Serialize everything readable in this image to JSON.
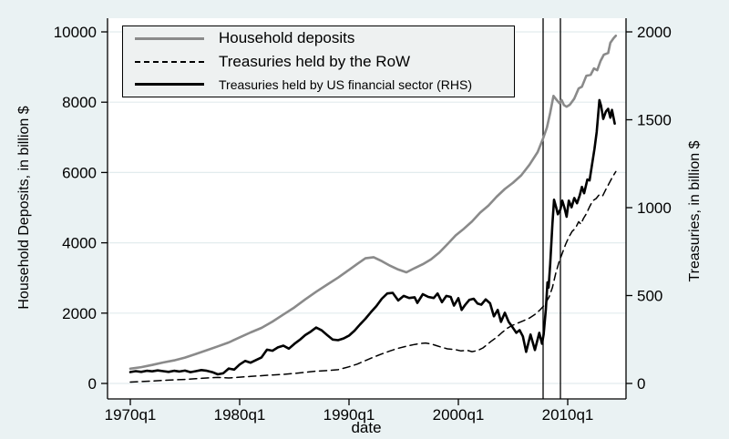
{
  "figure": {
    "background_color": "#eaf2f3",
    "plot_background": "#ffffff",
    "grid_color": "#e2ecee",
    "axis_color": "#000000"
  },
  "chart_data": {
    "type": "line",
    "x_axis": {
      "title": "date",
      "range": [
        1969.8,
        2015.3
      ],
      "ticks": [
        {
          "value": 1970,
          "label": "1970q1"
        },
        {
          "value": 1980,
          "label": "1980q1"
        },
        {
          "value": 1990,
          "label": "1990q1"
        },
        {
          "value": 2000,
          "label": "2000q1"
        },
        {
          "value": 2010,
          "label": "2010q1"
        }
      ]
    },
    "left_axis": {
      "title": "Household Deposits, in billion $",
      "range": [
        0,
        10000
      ],
      "ticks": [
        {
          "value": 0,
          "label": "0"
        },
        {
          "value": 2000,
          "label": "2000"
        },
        {
          "value": 4000,
          "label": "4000"
        },
        {
          "value": 6000,
          "label": "6000"
        },
        {
          "value": 8000,
          "label": "8000"
        },
        {
          "value": 10000,
          "label": "10000"
        }
      ]
    },
    "right_axis": {
      "title": "Treasuries, in billion $",
      "range": [
        0,
        2000
      ],
      "ticks": [
        {
          "value": 0,
          "label": "0"
        },
        {
          "value": 500,
          "label": "500"
        },
        {
          "value": 1000,
          "label": "1000"
        },
        {
          "value": 1500,
          "label": "1500"
        },
        {
          "value": 2000,
          "label": "2000"
        }
      ]
    },
    "vertical_lines": [
      2007.75,
      2009.33
    ],
    "legend_position": "top-left",
    "grid": "horizontal",
    "series": [
      {
        "name": "Household deposits",
        "axis": "left",
        "color": "#8a8a8a",
        "style": "solid",
        "width": 2.6,
        "points": [
          [
            1970,
            420
          ],
          [
            1971,
            465
          ],
          [
            1972,
            525
          ],
          [
            1973,
            595
          ],
          [
            1974,
            655
          ],
          [
            1975,
            735
          ],
          [
            1976,
            840
          ],
          [
            1977,
            945
          ],
          [
            1978,
            1055
          ],
          [
            1979,
            1165
          ],
          [
            1980,
            1310
          ],
          [
            1981,
            1450
          ],
          [
            1982,
            1580
          ],
          [
            1983,
            1760
          ],
          [
            1984,
            1960
          ],
          [
            1985,
            2160
          ],
          [
            1986,
            2390
          ],
          [
            1987,
            2610
          ],
          [
            1988,
            2810
          ],
          [
            1989,
            3010
          ],
          [
            1990,
            3230
          ],
          [
            1990.75,
            3400
          ],
          [
            1991.5,
            3560
          ],
          [
            1992.25,
            3590
          ],
          [
            1993,
            3480
          ],
          [
            1993.75,
            3350
          ],
          [
            1994.5,
            3240
          ],
          [
            1995.25,
            3160
          ],
          [
            1996,
            3280
          ],
          [
            1996.75,
            3390
          ],
          [
            1997.5,
            3530
          ],
          [
            1998.25,
            3720
          ],
          [
            1999,
            3960
          ],
          [
            1999.75,
            4210
          ],
          [
            2000.5,
            4400
          ],
          [
            2001.25,
            4610
          ],
          [
            2002,
            4860
          ],
          [
            2002.75,
            5060
          ],
          [
            2003.5,
            5310
          ],
          [
            2004.25,
            5530
          ],
          [
            2005,
            5710
          ],
          [
            2005.75,
            5920
          ],
          [
            2006.5,
            6220
          ],
          [
            2007.25,
            6580
          ],
          [
            2007.75,
            6970
          ],
          [
            2008.1,
            7280
          ],
          [
            2008.4,
            7700
          ],
          [
            2008.7,
            8180
          ],
          [
            2009,
            8060
          ],
          [
            2009.25,
            7970
          ],
          [
            2009.45,
            8060
          ],
          [
            2009.65,
            7920
          ],
          [
            2009.9,
            7870
          ],
          [
            2010.2,
            7930
          ],
          [
            2010.6,
            8100
          ],
          [
            2011,
            8390
          ],
          [
            2011.3,
            8440
          ],
          [
            2011.7,
            8750
          ],
          [
            2012.1,
            8780
          ],
          [
            2012.4,
            8960
          ],
          [
            2012.7,
            8910
          ],
          [
            2013,
            9170
          ],
          [
            2013.3,
            9350
          ],
          [
            2013.7,
            9400
          ],
          [
            2013.9,
            9690
          ],
          [
            2014.2,
            9820
          ],
          [
            2014.4,
            9890
          ]
        ]
      },
      {
        "name": "Treasuries held by the RoW",
        "axis": "right",
        "color": "#000000",
        "style": "dashed",
        "width": 1.5,
        "points": [
          [
            1970,
            8
          ],
          [
            1971,
            11
          ],
          [
            1972,
            14
          ],
          [
            1973,
            17
          ],
          [
            1974,
            20
          ],
          [
            1975,
            23
          ],
          [
            1976,
            27
          ],
          [
            1977,
            31
          ],
          [
            1978,
            34
          ],
          [
            1979,
            31
          ],
          [
            1980,
            36
          ],
          [
            1981,
            40
          ],
          [
            1982,
            44
          ],
          [
            1983,
            48
          ],
          [
            1984,
            52
          ],
          [
            1985,
            57
          ],
          [
            1986,
            63
          ],
          [
            1987,
            70
          ],
          [
            1988,
            73
          ],
          [
            1989,
            78
          ],
          [
            1990,
            95
          ],
          [
            1990.75,
            110
          ],
          [
            1991.5,
            130
          ],
          [
            1992.25,
            150
          ],
          [
            1993,
            168
          ],
          [
            1993.75,
            185
          ],
          [
            1994.5,
            200
          ],
          [
            1995.25,
            212
          ],
          [
            1996,
            222
          ],
          [
            1996.5,
            227
          ],
          [
            1997,
            230
          ],
          [
            1997.5,
            225
          ],
          [
            1998,
            215
          ],
          [
            1998.5,
            205
          ],
          [
            1999,
            197
          ],
          [
            1999.75,
            192
          ],
          [
            2000.25,
            185
          ],
          [
            2000.75,
            189
          ],
          [
            2001.25,
            181
          ],
          [
            2001.75,
            187
          ],
          [
            2002.25,
            202
          ],
          [
            2003,
            240
          ],
          [
            2003.5,
            262
          ],
          [
            2004,
            290
          ],
          [
            2004.5,
            315
          ],
          [
            2005,
            332
          ],
          [
            2005.5,
            345
          ],
          [
            2006,
            358
          ],
          [
            2006.5,
            372
          ],
          [
            2007,
            392
          ],
          [
            2007.5,
            420
          ],
          [
            2007.9,
            448
          ],
          [
            2008.3,
            492
          ],
          [
            2008.6,
            545
          ],
          [
            2008.9,
            625
          ],
          [
            2009.2,
            690
          ],
          [
            2009.5,
            740
          ],
          [
            2009.8,
            790
          ],
          [
            2010.1,
            832
          ],
          [
            2010.4,
            865
          ],
          [
            2010.7,
            882
          ],
          [
            2011,
            920
          ],
          [
            2011.2,
            906
          ],
          [
            2011.45,
            940
          ],
          [
            2011.7,
            965
          ],
          [
            2012,
            1005
          ],
          [
            2012.3,
            1040
          ],
          [
            2012.6,
            1052
          ],
          [
            2012.9,
            1075
          ],
          [
            2013.2,
            1068
          ],
          [
            2013.5,
            1105
          ],
          [
            2013.8,
            1140
          ],
          [
            2014.1,
            1175
          ],
          [
            2014.4,
            1205
          ]
        ]
      },
      {
        "name": "Treasuries held by US financial sector (RHS)",
        "axis": "right",
        "color": "#000000",
        "style": "solid",
        "width": 2.6,
        "points": [
          [
            1970,
            65
          ],
          [
            1970.5,
            70
          ],
          [
            1971,
            66
          ],
          [
            1971.5,
            72
          ],
          [
            1972,
            69
          ],
          [
            1972.5,
            74
          ],
          [
            1973,
            70
          ],
          [
            1973.5,
            66
          ],
          [
            1974,
            72
          ],
          [
            1974.5,
            68
          ],
          [
            1975,
            73
          ],
          [
            1975.5,
            64
          ],
          [
            1976,
            70
          ],
          [
            1976.5,
            76
          ],
          [
            1977,
            72
          ],
          [
            1977.5,
            64
          ],
          [
            1978,
            52
          ],
          [
            1978.5,
            58
          ],
          [
            1979,
            85
          ],
          [
            1979.5,
            79
          ],
          [
            1980,
            108
          ],
          [
            1980.5,
            128
          ],
          [
            1981,
            118
          ],
          [
            1981.5,
            133
          ],
          [
            1982,
            148
          ],
          [
            1982.5,
            192
          ],
          [
            1983,
            186
          ],
          [
            1983.5,
            205
          ],
          [
            1984,
            215
          ],
          [
            1984.5,
            198
          ],
          [
            1985,
            225
          ],
          [
            1985.5,
            248
          ],
          [
            1986,
            275
          ],
          [
            1986.5,
            295
          ],
          [
            1987,
            318
          ],
          [
            1987.5,
            302
          ],
          [
            1988,
            275
          ],
          [
            1988.5,
            250
          ],
          [
            1989,
            246
          ],
          [
            1989.5,
            256
          ],
          [
            1990,
            272
          ],
          [
            1990.5,
            300
          ],
          [
            1991,
            335
          ],
          [
            1991.5,
            368
          ],
          [
            1992,
            405
          ],
          [
            1992.5,
            440
          ],
          [
            1993,
            482
          ],
          [
            1993.5,
            512
          ],
          [
            1994,
            515
          ],
          [
            1994.5,
            472
          ],
          [
            1995,
            498
          ],
          [
            1995.5,
            486
          ],
          [
            1996,
            490
          ],
          [
            1996.25,
            458
          ],
          [
            1996.75,
            508
          ],
          [
            1997.25,
            492
          ],
          [
            1997.75,
            486
          ],
          [
            1998.1,
            512
          ],
          [
            1998.5,
            462
          ],
          [
            1998.9,
            498
          ],
          [
            1999.3,
            492
          ],
          [
            1999.6,
            443
          ],
          [
            2000,
            485
          ],
          [
            2000.3,
            418
          ],
          [
            2000.6,
            445
          ],
          [
            2001,
            475
          ],
          [
            2001.4,
            482
          ],
          [
            2001.75,
            455
          ],
          [
            2002.1,
            448
          ],
          [
            2002.5,
            478
          ],
          [
            2002.9,
            456
          ],
          [
            2003.25,
            382
          ],
          [
            2003.6,
            418
          ],
          [
            2003.9,
            350
          ],
          [
            2004.25,
            402
          ],
          [
            2004.6,
            350
          ],
          [
            2004.9,
            325
          ],
          [
            2005.3,
            288
          ],
          [
            2005.6,
            303
          ],
          [
            2005.9,
            268
          ],
          [
            2006.2,
            180
          ],
          [
            2006.6,
            278
          ],
          [
            2007,
            190
          ],
          [
            2007.4,
            288
          ],
          [
            2007.65,
            226
          ],
          [
            2007.8,
            280
          ],
          [
            2008,
            420
          ],
          [
            2008.15,
            575
          ],
          [
            2008.25,
            545
          ],
          [
            2008.4,
            680
          ],
          [
            2008.6,
            905
          ],
          [
            2008.75,
            1045
          ],
          [
            2008.95,
            1000
          ],
          [
            2009.1,
            962
          ],
          [
            2009.33,
            990
          ],
          [
            2009.5,
            1040
          ],
          [
            2009.7,
            1000
          ],
          [
            2009.9,
            948
          ],
          [
            2010.1,
            1040
          ],
          [
            2010.35,
            1002
          ],
          [
            2010.6,
            1055
          ],
          [
            2010.85,
            1025
          ],
          [
            2011.1,
            1070
          ],
          [
            2011.3,
            1118
          ],
          [
            2011.5,
            1082
          ],
          [
            2011.8,
            1160
          ],
          [
            2012,
            1155
          ],
          [
            2012.2,
            1235
          ],
          [
            2012.45,
            1335
          ],
          [
            2012.65,
            1430
          ],
          [
            2012.9,
            1612
          ],
          [
            2013.05,
            1580
          ],
          [
            2013.25,
            1505
          ],
          [
            2013.5,
            1548
          ],
          [
            2013.7,
            1562
          ],
          [
            2013.9,
            1512
          ],
          [
            2014.05,
            1556
          ],
          [
            2014.3,
            1478
          ]
        ]
      }
    ]
  }
}
